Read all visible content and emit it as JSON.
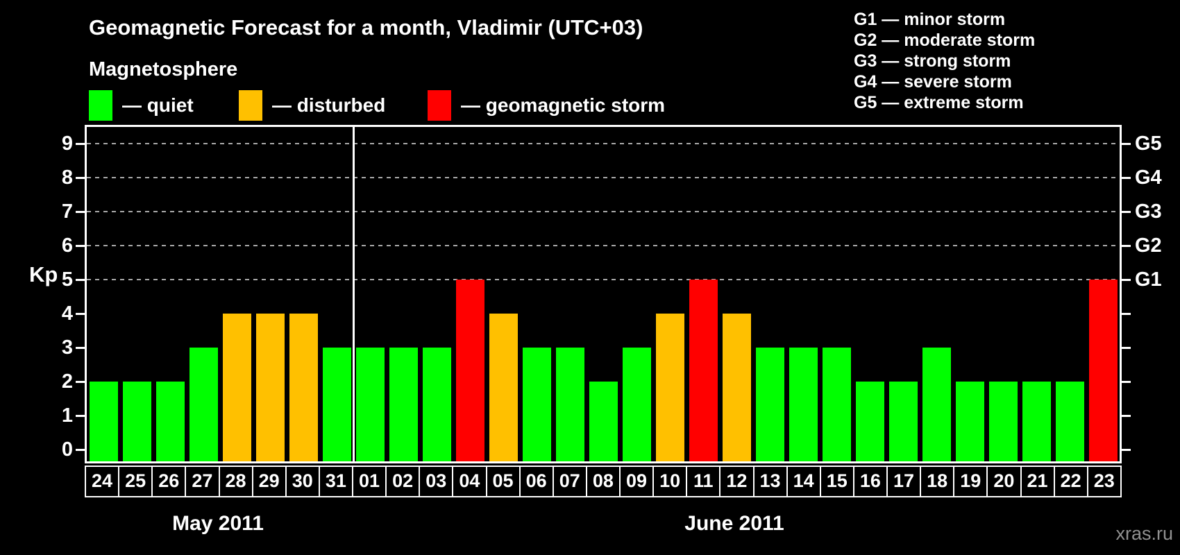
{
  "title": "Geomagnetic Forecast for a month, Vladimir (UTC+03)",
  "watermark": "xras.ru",
  "colors": {
    "quiet": "#00ff00",
    "disturbed": "#ffc000",
    "storm": "#ff0000",
    "background": "#000000",
    "axis": "#ffffff",
    "grid": "#aaaaaa",
    "watermark": "#919191"
  },
  "legend": {
    "heading": "Magnetosphere",
    "items": [
      {
        "status": "quiet",
        "label": "— quiet"
      },
      {
        "status": "disturbed",
        "label": "— disturbed"
      },
      {
        "status": "storm",
        "label": "— geomagnetic storm"
      }
    ]
  },
  "storm_scale_legend": [
    "G1 — minor storm",
    "G2 — moderate storm",
    "G3 — strong storm",
    "G4 — severe storm",
    "G5 — extreme storm"
  ],
  "axis": {
    "kp_label": "Kp",
    "left_ticks": [
      "0",
      "1",
      "2",
      "3",
      "4",
      "5",
      "6",
      "7",
      "8",
      "9"
    ],
    "right_labels": [
      {
        "kp": 5,
        "label": "G1"
      },
      {
        "kp": 6,
        "label": "G2"
      },
      {
        "kp": 7,
        "label": "G3"
      },
      {
        "kp": 8,
        "label": "G4"
      },
      {
        "kp": 9,
        "label": "G5"
      }
    ]
  },
  "chart_data": {
    "type": "bar",
    "title": "Geomagnetic Forecast for a month, Vladimir (UTC+03)",
    "xlabel": "",
    "ylabel": "Kp",
    "ylim": [
      0,
      9.5
    ],
    "grid": "dashed horizontal lines at Kp 5,6,7,8,9 (G1–G5)",
    "legend_position": "top",
    "months": [
      {
        "label": "May 2011",
        "days": 8
      },
      {
        "label": "June 2011",
        "days": 23
      }
    ],
    "bars": [
      {
        "day": "24",
        "kp": 2,
        "status": "quiet"
      },
      {
        "day": "25",
        "kp": 2,
        "status": "quiet"
      },
      {
        "day": "26",
        "kp": 2,
        "status": "quiet"
      },
      {
        "day": "27",
        "kp": 3,
        "status": "quiet"
      },
      {
        "day": "28",
        "kp": 4,
        "status": "disturbed"
      },
      {
        "day": "29",
        "kp": 4,
        "status": "disturbed"
      },
      {
        "day": "30",
        "kp": 4,
        "status": "disturbed"
      },
      {
        "day": "31",
        "kp": 3,
        "status": "quiet"
      },
      {
        "day": "01",
        "kp": 3,
        "status": "quiet"
      },
      {
        "day": "02",
        "kp": 3,
        "status": "quiet"
      },
      {
        "day": "03",
        "kp": 3,
        "status": "quiet"
      },
      {
        "day": "04",
        "kp": 5,
        "status": "storm"
      },
      {
        "day": "05",
        "kp": 4,
        "status": "disturbed"
      },
      {
        "day": "06",
        "kp": 3,
        "status": "quiet"
      },
      {
        "day": "07",
        "kp": 3,
        "status": "quiet"
      },
      {
        "day": "08",
        "kp": 2,
        "status": "quiet"
      },
      {
        "day": "09",
        "kp": 3,
        "status": "quiet"
      },
      {
        "day": "10",
        "kp": 4,
        "status": "disturbed"
      },
      {
        "day": "11",
        "kp": 5,
        "status": "storm"
      },
      {
        "day": "12",
        "kp": 4,
        "status": "disturbed"
      },
      {
        "day": "13",
        "kp": 3,
        "status": "quiet"
      },
      {
        "day": "14",
        "kp": 3,
        "status": "quiet"
      },
      {
        "day": "15",
        "kp": 3,
        "status": "quiet"
      },
      {
        "day": "16",
        "kp": 2,
        "status": "quiet"
      },
      {
        "day": "17",
        "kp": 2,
        "status": "quiet"
      },
      {
        "day": "18",
        "kp": 3,
        "status": "quiet"
      },
      {
        "day": "19",
        "kp": 2,
        "status": "quiet"
      },
      {
        "day": "20",
        "kp": 2,
        "status": "quiet"
      },
      {
        "day": "21",
        "kp": 2,
        "status": "quiet"
      },
      {
        "day": "22",
        "kp": 2,
        "status": "quiet"
      },
      {
        "day": "23",
        "kp": 5,
        "status": "storm"
      }
    ]
  }
}
